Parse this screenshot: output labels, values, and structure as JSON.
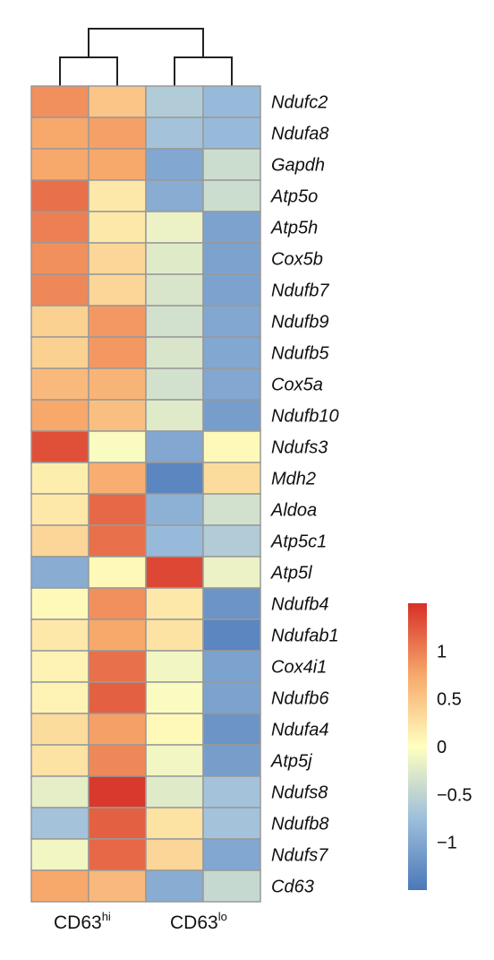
{
  "chart_data": {
    "type": "heatmap",
    "columns": [
      {
        "name": "CD63",
        "sup": "hi"
      },
      {
        "name": "CD63",
        "sup": "hi"
      },
      {
        "name": "CD63",
        "sup": "lo"
      },
      {
        "name": "CD63",
        "sup": "lo"
      }
    ],
    "groups": [
      {
        "name": "CD63",
        "sup": "hi"
      },
      {
        "name": "CD63",
        "sup": "lo"
      }
    ],
    "rows": [
      "Ndufc2",
      "Ndufa8",
      "Gapdh",
      "Atp5o",
      "Atp5h",
      "Cox5b",
      "Ndufb7",
      "Ndufb9",
      "Ndufb5",
      "Cox5a",
      "Ndufb10",
      "Ndufs3",
      "Mdh2",
      "Aldoa",
      "Atp5c1",
      "Atp5l",
      "Ndufb4",
      "Ndufab1",
      "Cox4i1",
      "Ndufb6",
      "Ndufa4",
      "Atp5j",
      "Ndufs8",
      "Ndufb8",
      "Ndufs7",
      "Cd63"
    ],
    "values": [
      [
        0.9,
        0.5,
        -0.6,
        -0.8
      ],
      [
        0.75,
        0.8,
        -0.7,
        -0.8
      ],
      [
        0.75,
        0.75,
        -1.0,
        -0.4
      ],
      [
        1.1,
        0.2,
        -0.95,
        -0.4
      ],
      [
        1.0,
        0.2,
        -0.15,
        -1.05
      ],
      [
        0.9,
        0.35,
        -0.25,
        -1.05
      ],
      [
        0.95,
        0.35,
        -0.3,
        -1.05
      ],
      [
        0.4,
        0.85,
        -0.35,
        -1.0
      ],
      [
        0.4,
        0.85,
        -0.3,
        -1.0
      ],
      [
        0.6,
        0.65,
        -0.35,
        -1.0
      ],
      [
        0.75,
        0.55,
        -0.25,
        -1.1
      ],
      [
        1.3,
        -0.05,
        -1.0,
        0.05
      ],
      [
        0.15,
        0.7,
        -1.35,
        0.3
      ],
      [
        0.2,
        1.15,
        -0.9,
        -0.35
      ],
      [
        0.35,
        1.1,
        -0.8,
        -0.6
      ],
      [
        -0.95,
        0.05,
        1.35,
        -0.15
      ],
      [
        0.05,
        0.9,
        0.2,
        -1.2
      ],
      [
        0.2,
        0.75,
        0.25,
        -1.35
      ],
      [
        0.1,
        1.1,
        -0.1,
        -1.05
      ],
      [
        0.1,
        1.2,
        -0.05,
        -1.05
      ],
      [
        0.3,
        0.8,
        0.05,
        -1.2
      ],
      [
        0.25,
        0.95,
        -0.1,
        -1.1
      ],
      [
        -0.2,
        1.45,
        -0.25,
        -0.7
      ],
      [
        -0.7,
        1.2,
        0.25,
        -0.7
      ],
      [
        -0.1,
        1.15,
        0.35,
        -1.0
      ],
      [
        0.75,
        0.6,
        -0.95,
        -0.45
      ]
    ],
    "colorbar": {
      "ticks": [
        "1",
        "0.5",
        "0",
        "−0.5",
        "−1"
      ],
      "tick_values": [
        1,
        0.5,
        0,
        -0.5,
        -1
      ],
      "range": [
        -1.5,
        1.5
      ]
    },
    "colors": {
      "high": "#d73027",
      "mid_high": "#f7a86b",
      "mid": "#ffffbf",
      "mid_low": "#9ebfdc",
      "low": "#4a78b8",
      "cell_border": "#999999",
      "dendrogram": "#222222"
    },
    "dendrogram": "present"
  }
}
